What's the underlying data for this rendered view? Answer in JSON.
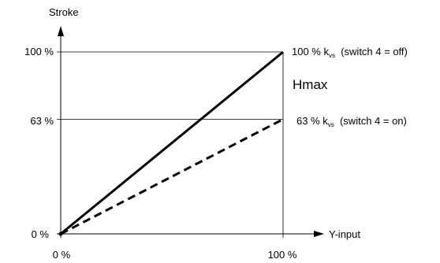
{
  "chart_data": {
    "type": "line",
    "ylabel": "Stroke",
    "xlabel": "Y-input",
    "x_ticks": [
      "0 %",
      "100 %"
    ],
    "y_ticks": [
      "0 %",
      "63 %",
      "100 %"
    ],
    "xlim": [
      0,
      100
    ],
    "ylim": [
      0,
      100
    ],
    "grid": "reference lines at y = 63 and y = 100, vertical at x = 100",
    "series": [
      {
        "style": "solid",
        "x": [
          0,
          100
        ],
        "y": [
          0,
          100
        ]
      },
      {
        "style": "dashed",
        "x": [
          0,
          100
        ],
        "y": [
          0,
          63
        ]
      }
    ],
    "annotations": {
      "top": {
        "main": "100 % k",
        "sub": "vs",
        "tail": "  (switch 4 = off)"
      },
      "bottom": {
        "main": "63 % k",
        "sub": "vs",
        "tail": "  (switch 4 = on)"
      },
      "hmax": "Hmax"
    }
  }
}
